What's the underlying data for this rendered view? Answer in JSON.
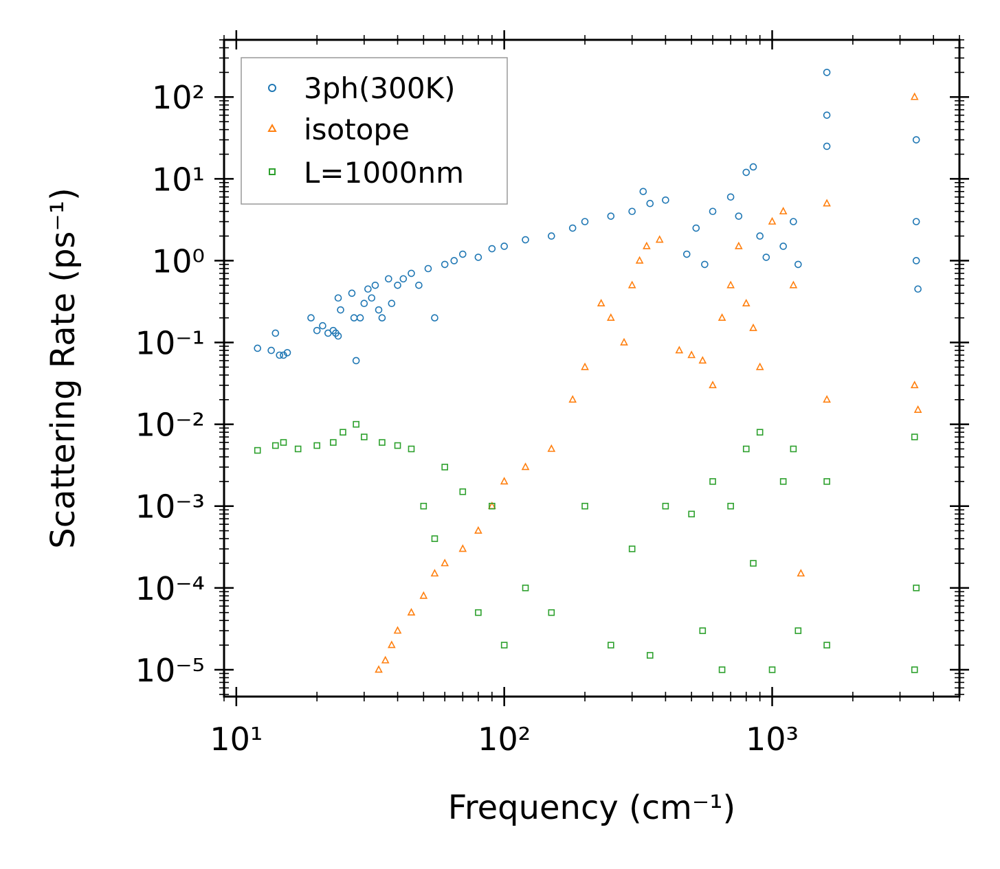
{
  "chart_data": {
    "type": "scatter",
    "title": "",
    "xlabel": "Frequency (cm⁻¹)",
    "ylabel": "Scattering Rate (ps⁻¹)",
    "xscale": "log",
    "yscale": "log",
    "xlim": [
      9,
      5000
    ],
    "ylim": [
      4.7e-06,
      500
    ],
    "x_ticks": [
      {
        "value": 10,
        "label": "10¹"
      },
      {
        "value": 100,
        "label": "10²"
      },
      {
        "value": 1000,
        "label": "10³"
      }
    ],
    "y_ticks": [
      {
        "value": 1e-05,
        "label": "10⁻⁵"
      },
      {
        "value": 0.0001,
        "label": "10⁻⁴"
      },
      {
        "value": 0.001,
        "label": "10⁻³"
      },
      {
        "value": 0.01,
        "label": "10⁻²"
      },
      {
        "value": 0.1,
        "label": "10⁻¹"
      },
      {
        "value": 1,
        "label": "10⁰"
      },
      {
        "value": 10,
        "label": "10¹"
      },
      {
        "value": 100,
        "label": "10²"
      }
    ],
    "legend_position": "top-left",
    "series": [
      {
        "name": "3ph(300K)",
        "marker": "circle",
        "color": "#1f77b4",
        "points": [
          [
            12,
            0.085
          ],
          [
            13.5,
            0.08
          ],
          [
            14,
            0.13
          ],
          [
            14.5,
            0.07
          ],
          [
            15,
            0.07
          ],
          [
            15.5,
            0.075
          ],
          [
            19,
            0.2
          ],
          [
            20,
            0.14
          ],
          [
            21,
            0.16
          ],
          [
            22,
            0.13
          ],
          [
            23,
            0.14
          ],
          [
            23.5,
            0.13
          ],
          [
            24,
            0.12
          ],
          [
            24,
            0.35
          ],
          [
            24.5,
            0.25
          ],
          [
            27,
            0.4
          ],
          [
            27.5,
            0.2
          ],
          [
            28,
            0.06
          ],
          [
            29,
            0.2
          ],
          [
            30,
            0.3
          ],
          [
            31,
            0.45
          ],
          [
            32,
            0.35
          ],
          [
            33,
            0.5
          ],
          [
            34,
            0.25
          ],
          [
            35,
            0.2
          ],
          [
            37,
            0.6
          ],
          [
            38,
            0.3
          ],
          [
            40,
            0.5
          ],
          [
            42,
            0.6
          ],
          [
            45,
            0.7
          ],
          [
            48,
            0.5
          ],
          [
            52,
            0.8
          ],
          [
            55,
            0.2
          ],
          [
            60,
            0.9
          ],
          [
            65,
            1.0
          ],
          [
            70,
            1.2
          ],
          [
            80,
            1.1
          ],
          [
            90,
            1.4
          ],
          [
            100,
            1.5
          ],
          [
            120,
            1.8
          ],
          [
            150,
            2.0
          ],
          [
            180,
            2.5
          ],
          [
            200,
            3.0
          ],
          [
            250,
            3.5
          ],
          [
            300,
            4.0
          ],
          [
            330,
            7.0
          ],
          [
            350,
            5.0
          ],
          [
            400,
            5.5
          ],
          [
            480,
            1.2
          ],
          [
            520,
            2.5
          ],
          [
            560,
            0.9
          ],
          [
            600,
            4.0
          ],
          [
            700,
            6.0
          ],
          [
            750,
            3.5
          ],
          [
            800,
            12.0
          ],
          [
            850,
            14.0
          ],
          [
            900,
            2.0
          ],
          [
            950,
            1.1
          ],
          [
            1100,
            1.5
          ],
          [
            1200,
            3.0
          ],
          [
            1250,
            0.9
          ],
          [
            1600,
            200.0
          ],
          [
            1600,
            25.0
          ],
          [
            1600,
            60.0
          ],
          [
            3450,
            30.0
          ],
          [
            3450,
            3.0
          ],
          [
            3450,
            1.0
          ],
          [
            3500,
            0.45
          ]
        ]
      },
      {
        "name": "isotope",
        "marker": "triangle",
        "color": "#ff7f0e",
        "points": [
          [
            34,
            1e-05
          ],
          [
            36,
            1.3e-05
          ],
          [
            38,
            2e-05
          ],
          [
            40,
            3e-05
          ],
          [
            45,
            5e-05
          ],
          [
            50,
            8e-05
          ],
          [
            55,
            0.00015
          ],
          [
            60,
            0.0002
          ],
          [
            70,
            0.0003
          ],
          [
            80,
            0.0005
          ],
          [
            90,
            0.001
          ],
          [
            100,
            0.002
          ],
          [
            120,
            0.003
          ],
          [
            150,
            0.005
          ],
          [
            180,
            0.02
          ],
          [
            200,
            0.05
          ],
          [
            230,
            0.3
          ],
          [
            250,
            0.2
          ],
          [
            280,
            0.1
          ],
          [
            300,
            0.5
          ],
          [
            320,
            1.0
          ],
          [
            340,
            1.5
          ],
          [
            380,
            1.8
          ],
          [
            450,
            0.08
          ],
          [
            500,
            0.07
          ],
          [
            550,
            0.06
          ],
          [
            600,
            0.03
          ],
          [
            650,
            0.2
          ],
          [
            700,
            0.5
          ],
          [
            750,
            1.5
          ],
          [
            800,
            0.3
          ],
          [
            850,
            0.15
          ],
          [
            900,
            0.05
          ],
          [
            1000,
            3.0
          ],
          [
            1100,
            4.0
          ],
          [
            1200,
            0.5
          ],
          [
            1280,
            0.00015
          ],
          [
            1600,
            5.0
          ],
          [
            1600,
            0.02
          ],
          [
            3400,
            100.0
          ],
          [
            3400,
            0.03
          ],
          [
            3500,
            0.015
          ]
        ]
      },
      {
        "name": "L=1000nm",
        "marker": "square",
        "color": "#2ca02c",
        "points": [
          [
            12,
            0.0048
          ],
          [
            14,
            0.0055
          ],
          [
            15,
            0.006
          ],
          [
            17,
            0.005
          ],
          [
            20,
            0.0055
          ],
          [
            23,
            0.006
          ],
          [
            25,
            0.008
          ],
          [
            28,
            0.01
          ],
          [
            30,
            0.007
          ],
          [
            35,
            0.006
          ],
          [
            40,
            0.0055
          ],
          [
            45,
            0.005
          ],
          [
            50,
            0.001
          ],
          [
            55,
            0.0004
          ],
          [
            60,
            0.003
          ],
          [
            70,
            0.0015
          ],
          [
            80,
            5e-05
          ],
          [
            90,
            0.001
          ],
          [
            100,
            2e-05
          ],
          [
            120,
            0.0001
          ],
          [
            150,
            5e-05
          ],
          [
            200,
            0.001
          ],
          [
            250,
            2e-05
          ],
          [
            300,
            0.0003
          ],
          [
            350,
            1.5e-05
          ],
          [
            400,
            0.001
          ],
          [
            500,
            0.0008
          ],
          [
            550,
            3e-05
          ],
          [
            600,
            0.002
          ],
          [
            650,
            1e-05
          ],
          [
            700,
            0.001
          ],
          [
            800,
            0.005
          ],
          [
            850,
            0.0002
          ],
          [
            900,
            0.008
          ],
          [
            1000,
            1e-05
          ],
          [
            1100,
            0.002
          ],
          [
            1200,
            0.005
          ],
          [
            1250,
            3e-05
          ],
          [
            1600,
            0.002
          ],
          [
            1600,
            2e-05
          ],
          [
            3400,
            0.007
          ],
          [
            3400,
            1e-05
          ],
          [
            3450,
            0.0001
          ]
        ]
      }
    ]
  }
}
